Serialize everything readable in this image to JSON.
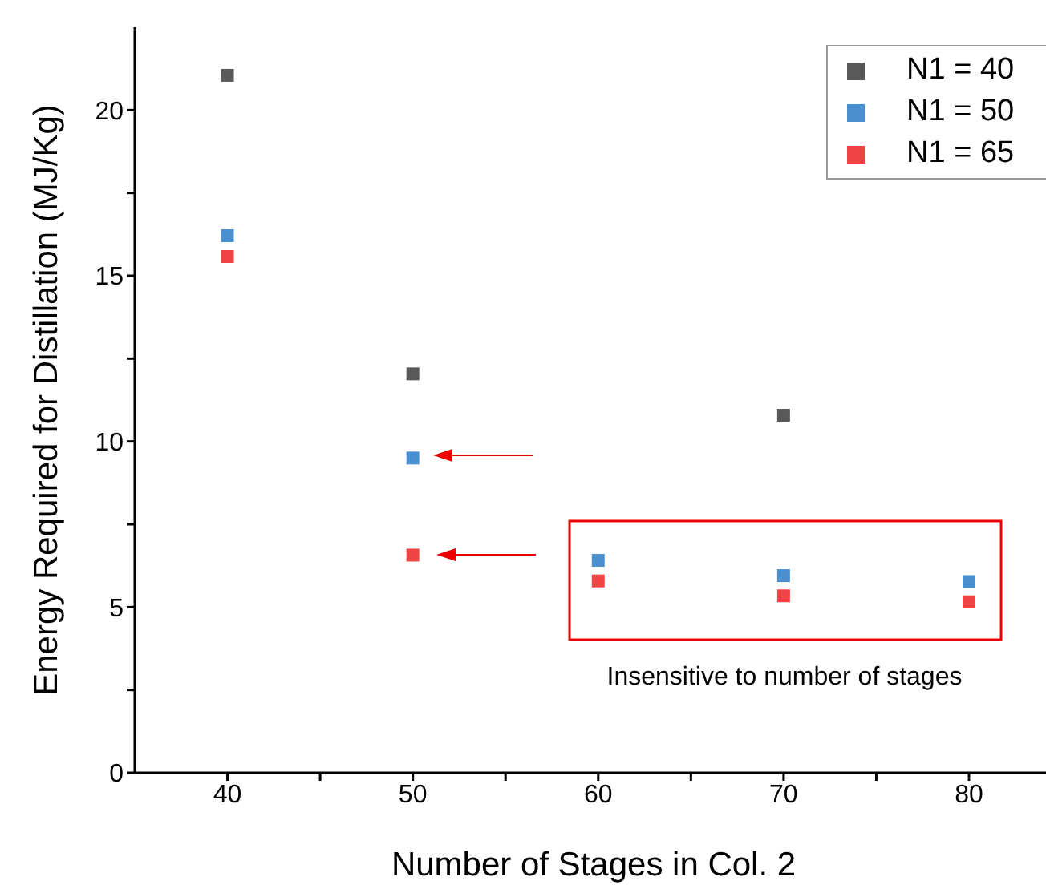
{
  "chart_data": {
    "type": "scatter",
    "xlabel": "Number of Stages in Col. 2",
    "ylabel": "Energy Required for Distillation (MJ/Kg)",
    "series": [
      {
        "name": "N1 = 40",
        "color": "#595959",
        "x": [
          40,
          50,
          70
        ],
        "values": [
          21.05,
          12.04,
          10.79
        ]
      },
      {
        "name": "N1 = 50",
        "color": "#4a90d0",
        "x": [
          40,
          50,
          60,
          70,
          80
        ],
        "values": [
          16.21,
          9.5,
          6.41,
          5.95,
          5.77
        ]
      },
      {
        "name": "N1 = 65",
        "color": "#f04343",
        "x": [
          40,
          50,
          60,
          70,
          80
        ],
        "values": [
          15.58,
          6.57,
          5.79,
          5.34,
          5.16
        ]
      }
    ],
    "xlim": [
      35,
      84.5
    ],
    "xticks": [
      40,
      {
        "value": 45,
        "label": null
      },
      50,
      {
        "value": 55,
        "label": null
      },
      60,
      {
        "value": 65,
        "label": null
      },
      70,
      {
        "value": 75,
        "label": null
      },
      80
    ],
    "ylim": [
      0,
      22.5
    ],
    "yticks": [
      0,
      {
        "value": 2.5,
        "label": null
      },
      5,
      {
        "value": 7.5,
        "label": null
      },
      10,
      {
        "value": 12.5,
        "label": null
      },
      15,
      {
        "value": 17.5,
        "label": null
      },
      20
    ],
    "marker": "square",
    "legend": "top right",
    "grid": false,
    "annotations": [
      "Insensitive to number of stages"
    ]
  }
}
